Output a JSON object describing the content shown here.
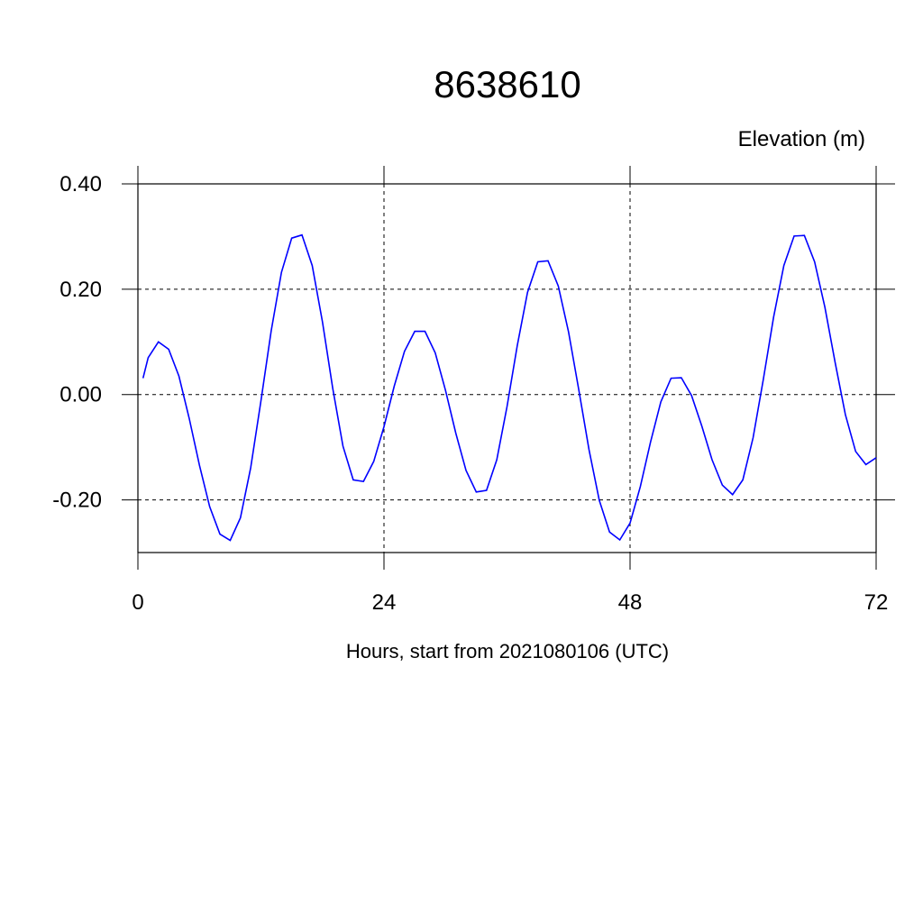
{
  "chart_data": {
    "type": "line",
    "title": "8638610",
    "ylabel": "Elevation (m)",
    "xlabel": "Hours, start from 2021080106 (UTC)",
    "x": [
      0.5,
      1,
      2,
      3,
      4,
      5,
      6,
      7,
      8,
      9,
      10,
      11,
      12,
      13,
      14,
      15,
      16,
      17,
      18,
      19,
      20,
      21,
      22,
      23,
      24,
      25,
      26,
      27,
      28,
      29,
      30,
      31,
      32,
      33,
      34,
      35,
      36,
      37,
      38,
      39,
      40,
      41,
      42,
      43,
      44,
      45,
      46,
      47,
      48,
      49,
      50,
      51,
      52,
      53,
      54,
      55,
      56,
      57,
      58,
      59,
      60,
      61,
      62,
      63,
      64,
      65,
      66,
      67,
      68,
      69,
      70,
      71,
      72
    ],
    "series": [
      {
        "color": "#0000ff",
        "values": [
          0.031,
          0.07,
          0.1,
          0.086,
          0.035,
          -0.045,
          -0.134,
          -0.213,
          -0.265,
          -0.277,
          -0.234,
          -0.139,
          -0.012,
          0.121,
          0.232,
          0.297,
          0.303,
          0.245,
          0.138,
          0.012,
          -0.098,
          -0.162,
          -0.165,
          -0.127,
          -0.061,
          0.016,
          0.082,
          0.12,
          0.12,
          0.079,
          0.008,
          -0.073,
          -0.144,
          -0.185,
          -0.182,
          -0.124,
          -0.023,
          0.093,
          0.194,
          0.252,
          0.254,
          0.206,
          0.119,
          0.009,
          -0.105,
          -0.201,
          -0.261,
          -0.276,
          -0.244,
          -0.175,
          -0.09,
          -0.014,
          0.031,
          0.032,
          -0.002,
          -0.06,
          -0.124,
          -0.172,
          -0.19,
          -0.162,
          -0.082,
          0.029,
          0.147,
          0.245,
          0.301,
          0.302,
          0.252,
          0.166,
          0.061,
          -0.038,
          -0.108,
          -0.133,
          -0.12
        ]
      }
    ],
    "xlim": [
      0,
      72
    ],
    "xticks": [
      0,
      24,
      48,
      72
    ],
    "ylim": [
      -0.3,
      0.4
    ],
    "yticks": [
      {
        "value": 0.4,
        "label": "0.40"
      },
      {
        "value": 0.2,
        "label": "0.20"
      },
      {
        "value": 0,
        "label": "0.00"
      },
      {
        "value": -0.2,
        "label": "-0.20"
      }
    ],
    "grid": true
  }
}
